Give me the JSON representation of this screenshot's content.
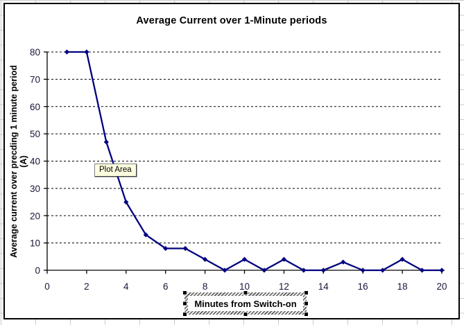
{
  "chart": {
    "title": "Average Current over 1-Minute periods",
    "x_axis_title": "Minutes from Switch-on",
    "y_axis_title_line1": "Average current over precding 1 minute period",
    "y_axis_title_line2": "(A)",
    "tooltip": "Plot Area"
  },
  "chart_data": {
    "type": "line",
    "title": "Average Current over 1-Minute periods",
    "xlabel": "Minutes from Switch-on",
    "ylabel": "Average current over precding 1 minute period (A)",
    "x": [
      1,
      2,
      3,
      4,
      5,
      6,
      7,
      8,
      9,
      10,
      11,
      12,
      13,
      14,
      15,
      16,
      17,
      18,
      19,
      20
    ],
    "values": [
      80,
      80,
      47,
      25,
      13,
      8,
      8,
      4,
      0,
      4,
      0,
      4,
      0,
      0,
      3,
      0,
      0,
      4,
      0,
      0
    ],
    "xticks": [
      0,
      2,
      4,
      6,
      8,
      10,
      12,
      14,
      16,
      18,
      20
    ],
    "yticks": [
      0,
      10,
      20,
      30,
      40,
      50,
      60,
      70,
      80
    ],
    "xlim": [
      0,
      20
    ],
    "ylim": [
      0,
      80
    ],
    "grid": "horizontal-dashed",
    "legend": "none",
    "marker": "diamond",
    "series_color": "#000080"
  },
  "colors": {
    "series": "#000080",
    "tick_label": "#16163a",
    "grid_dash": "#000000",
    "axis": "#000000",
    "tooltip_bg": "#ffffe1",
    "chart_border": "#000000",
    "sheet_gridline": "#c9c9c9"
  }
}
